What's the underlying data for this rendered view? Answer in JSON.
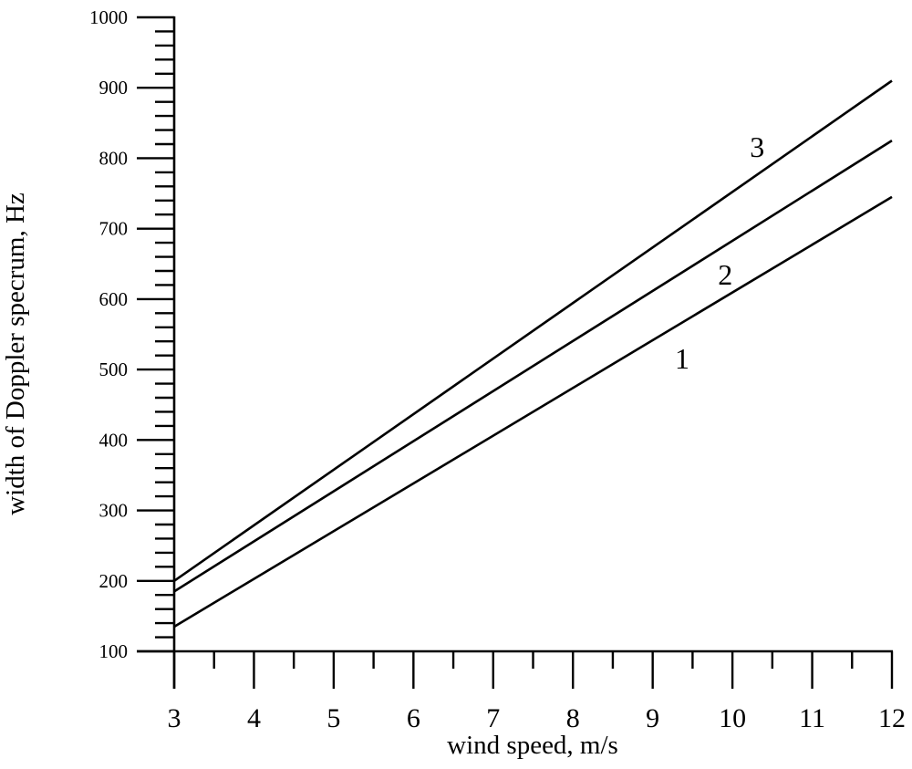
{
  "figure": {
    "background": "#ffffff",
    "ink_color": "#000000"
  },
  "chart_data": {
    "type": "line",
    "title": "",
    "xlabel": "wind speed, m/s",
    "ylabel": "width of Doppler specrum, Hz",
    "xlim": [
      3,
      12
    ],
    "ylim": [
      100,
      1000
    ],
    "grid": false,
    "legend_position": "inline-curve-labels",
    "x_major_ticks": [
      3,
      4,
      5,
      6,
      7,
      8,
      9,
      10,
      11,
      12
    ],
    "x_tick_labels": [
      "3",
      "4",
      "5",
      "6",
      "7",
      "8",
      "9",
      "10",
      "11",
      "12"
    ],
    "x_minor_step": 0.5,
    "y_major_ticks": [
      100,
      200,
      300,
      400,
      500,
      600,
      700,
      800,
      900,
      1000
    ],
    "y_tick_labels": [
      "100",
      "200",
      "300",
      "400",
      "500",
      "600",
      "700",
      "800",
      "900",
      "1000"
    ],
    "y_minor_step": 20,
    "series": [
      {
        "name": "1",
        "label": "1",
        "x": [
          3,
          12
        ],
        "y": [
          135,
          745
        ],
        "label_at": {
          "x": 9.37,
          "y": 516
        }
      },
      {
        "name": "2",
        "label": "2",
        "x": [
          3,
          12
        ],
        "y": [
          185,
          825
        ],
        "label_at": {
          "x": 9.91,
          "y": 635
        }
      },
      {
        "name": "3",
        "label": "3",
        "x": [
          3,
          12
        ],
        "y": [
          200,
          910
        ],
        "label_at": {
          "x": 10.31,
          "y": 816
        }
      }
    ]
  }
}
